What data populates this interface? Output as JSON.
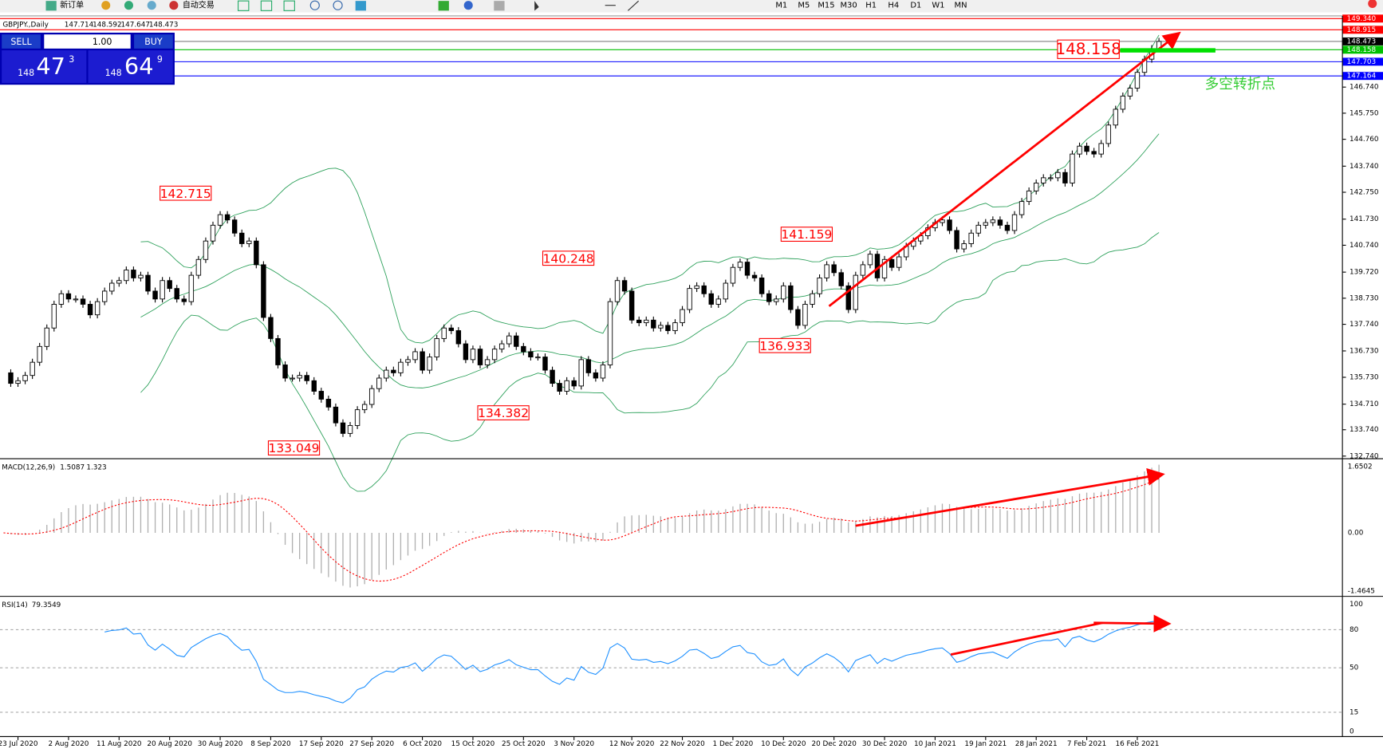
{
  "toolbar": {
    "new_order": "新订单",
    "auto_trading": "自动交易",
    "timeframes": [
      "M1",
      "M5",
      "M15",
      "M30",
      "H1",
      "H4",
      "D1",
      "W1",
      "MN"
    ]
  },
  "one_click": {
    "sell": "SELL",
    "buy": "BUY",
    "lots": "1.00",
    "bid": [
      "148",
      "47",
      "3"
    ],
    "ask": [
      "148",
      "64",
      "9"
    ]
  },
  "chart_data": {
    "type": "candlestick",
    "symbol": "GBPJPY.,Daily",
    "ohlc": [
      147.714,
      148.592,
      147.647,
      148.473
    ],
    "closes": [
      135.9,
      135.5,
      135.6,
      135.8,
      136.3,
      136.9,
      137.6,
      138.5,
      138.9,
      138.7,
      138.7,
      138.5,
      138.1,
      138.6,
      139.0,
      139.3,
      139.4,
      139.8,
      139.5,
      139.6,
      139.0,
      138.7,
      139.4,
      139.1,
      138.7,
      138.6,
      139.6,
      140.2,
      140.9,
      141.5,
      141.9,
      141.7,
      141.2,
      140.8,
      140.9,
      140.0,
      138.0,
      137.2,
      136.2,
      135.7,
      135.7,
      135.8,
      135.6,
      135.2,
      134.9,
      134.6,
      134.0,
      133.6,
      133.9,
      134.5,
      134.7,
      135.3,
      135.7,
      136.0,
      135.9,
      136.3,
      136.4,
      136.7,
      136.0,
      136.5,
      137.2,
      137.6,
      137.5,
      137.0,
      136.4,
      136.8,
      136.2,
      136.4,
      136.8,
      137.0,
      137.3,
      136.9,
      136.7,
      136.5,
      136.5,
      136.0,
      135.5,
      135.2,
      135.6,
      135.4,
      136.4,
      135.9,
      135.7,
      136.2,
      138.6,
      139.4,
      139.0,
      137.9,
      137.8,
      137.9,
      137.6,
      137.7,
      137.5,
      137.8,
      138.3,
      139.1,
      139.2,
      138.9,
      138.5,
      138.7,
      139.3,
      139.9,
      140.1,
      139.6,
      139.5,
      138.9,
      138.6,
      138.7,
      139.2,
      138.3,
      137.7,
      138.5,
      138.9,
      139.5,
      140.0,
      139.7,
      139.2,
      138.3,
      139.6,
      140.0,
      140.4,
      139.5,
      140.2,
      139.9,
      140.3,
      140.7,
      140.9,
      141.1,
      141.4,
      141.6,
      141.7,
      141.3,
      140.6,
      140.8,
      141.2,
      141.5,
      141.6,
      141.7,
      141.5,
      141.3,
      141.9,
      142.4,
      142.8,
      143.1,
      143.3,
      143.3,
      143.5,
      143.1,
      144.2,
      144.5,
      144.3,
      144.2,
      144.6,
      145.3,
      145.9,
      146.4,
      146.7,
      147.3,
      147.8,
      148.2,
      148.473
    ],
    "ylim": [
      132.74,
      149.34
    ],
    "yticks": [
      {
        "value": 132.74,
        "label": "132.740"
      },
      {
        "value": 133.74,
        "label": "133.740"
      },
      {
        "value": 134.71,
        "label": "134.710"
      },
      {
        "value": 135.73,
        "label": "135.730"
      },
      {
        "value": 136.73,
        "label": "136.730"
      },
      {
        "value": 137.74,
        "label": "137.740"
      },
      {
        "value": 138.73,
        "label": "138.730"
      },
      {
        "value": 139.72,
        "label": "139.720"
      },
      {
        "value": 140.74,
        "label": "140.740"
      },
      {
        "value": 141.73,
        "label": "141.730"
      },
      {
        "value": 142.75,
        "label": "142.750"
      },
      {
        "value": 143.74,
        "label": "143.740"
      },
      {
        "value": 144.76,
        "label": "144.760"
      },
      {
        "value": 145.75,
        "label": "145.750"
      },
      {
        "value": 146.74,
        "label": "146.740"
      }
    ],
    "xticks": [
      {
        "value": 2,
        "label": "23 Jul 2020"
      },
      {
        "value": 9,
        "label": "2 Aug 2020"
      },
      {
        "value": 16,
        "label": "11 Aug 2020"
      },
      {
        "value": 23,
        "label": "20 Aug 2020"
      },
      {
        "value": 30,
        "label": "30 Aug 2020"
      },
      {
        "value": 37,
        "label": "8 Sep 2020"
      },
      {
        "value": 44,
        "label": "17 Sep 2020"
      },
      {
        "value": 51,
        "label": "27 Sep 2020"
      },
      {
        "value": 58,
        "label": "6 Oct 2020"
      },
      {
        "value": 65,
        "label": "15 Oct 2020"
      },
      {
        "value": 72,
        "label": "25 Oct 2020"
      },
      {
        "value": 79,
        "label": "3 Nov 2020"
      },
      {
        "value": 87,
        "label": "12 Nov 2020"
      },
      {
        "value": 94,
        "label": "22 Nov 2020"
      },
      {
        "value": 101,
        "label": "1 Dec 2020"
      },
      {
        "value": 108,
        "label": "10 Dec 2020"
      },
      {
        "value": 115,
        "label": "20 Dec 2020"
      },
      {
        "value": 122,
        "label": "30 Dec 2020"
      },
      {
        "value": 129,
        "label": "10 Jan 2021"
      },
      {
        "value": 136,
        "label": "19 Jan 2021"
      },
      {
        "value": 143,
        "label": "28 Jan 2021"
      },
      {
        "value": 150,
        "label": "7 Feb 2021"
      },
      {
        "value": 157,
        "label": "16 Feb 2021"
      }
    ],
    "levels": [
      {
        "value": 149.34,
        "label": "149.340",
        "color": "#ff0000"
      },
      {
        "value": 148.915,
        "label": "148.915",
        "color": "#ff0000"
      },
      {
        "value": 148.473,
        "label": "148.473",
        "color": "#808080"
      },
      {
        "value": 148.158,
        "label": "148.158",
        "color": "#00c000"
      },
      {
        "value": 147.703,
        "label": "147.703",
        "color": "#0000ff"
      },
      {
        "value": 147.164,
        "label": "147.164",
        "color": "#0000ff"
      }
    ],
    "annotations": [
      {
        "value": 142.715,
        "x": 29
      },
      {
        "value": 140.248,
        "x": 82
      },
      {
        "value": 141.159,
        "x": 115
      },
      {
        "value": 136.933,
        "x": 112
      },
      {
        "value": 134.382,
        "x": 73
      },
      {
        "value": 133.049,
        "x": 44
      }
    ],
    "level_label": 148.158,
    "note": "多空转折点",
    "macd": {
      "label": "MACD(12,26,9)",
      "values": [
        1.5087,
        1.323
      ],
      "ylim": [
        -1.4645,
        1.6502
      ],
      "yticks": [
        {
          "value": 1.6502,
          "label": "1.6502"
        },
        {
          "value": 0,
          "label": "0.00"
        },
        -1.4645
      ]
    },
    "rsi": {
      "label": "RSI(14)",
      "value": 79.3549,
      "ylim": [
        0,
        100
      ],
      "yticks": [
        100,
        80,
        50,
        15,
        0
      ]
    }
  }
}
